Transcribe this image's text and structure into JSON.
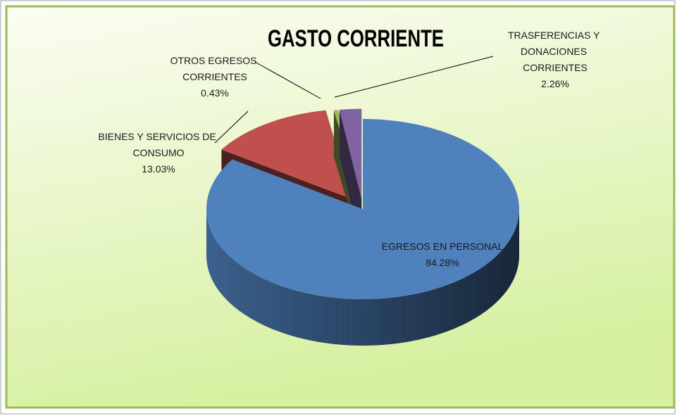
{
  "chart_data": {
    "type": "pie",
    "title": "GASTO CORRIENTE",
    "categories": [
      "EGRESOS EN PERSONAL",
      "BIENES Y SERVICIOS DE CONSUMO",
      "OTROS EGRESOS CORRIENTES",
      "TRASFERENCIAS Y DONACIONES CORRIENTES"
    ],
    "values": [
      84.28,
      13.03,
      0.43,
      2.26
    ],
    "value_labels": [
      "84.28%",
      "13.03%",
      "0.43%",
      "2.26%"
    ],
    "colors": [
      "#4f81bd",
      "#c0504d",
      "#9bbb59",
      "#8064a2"
    ]
  }
}
